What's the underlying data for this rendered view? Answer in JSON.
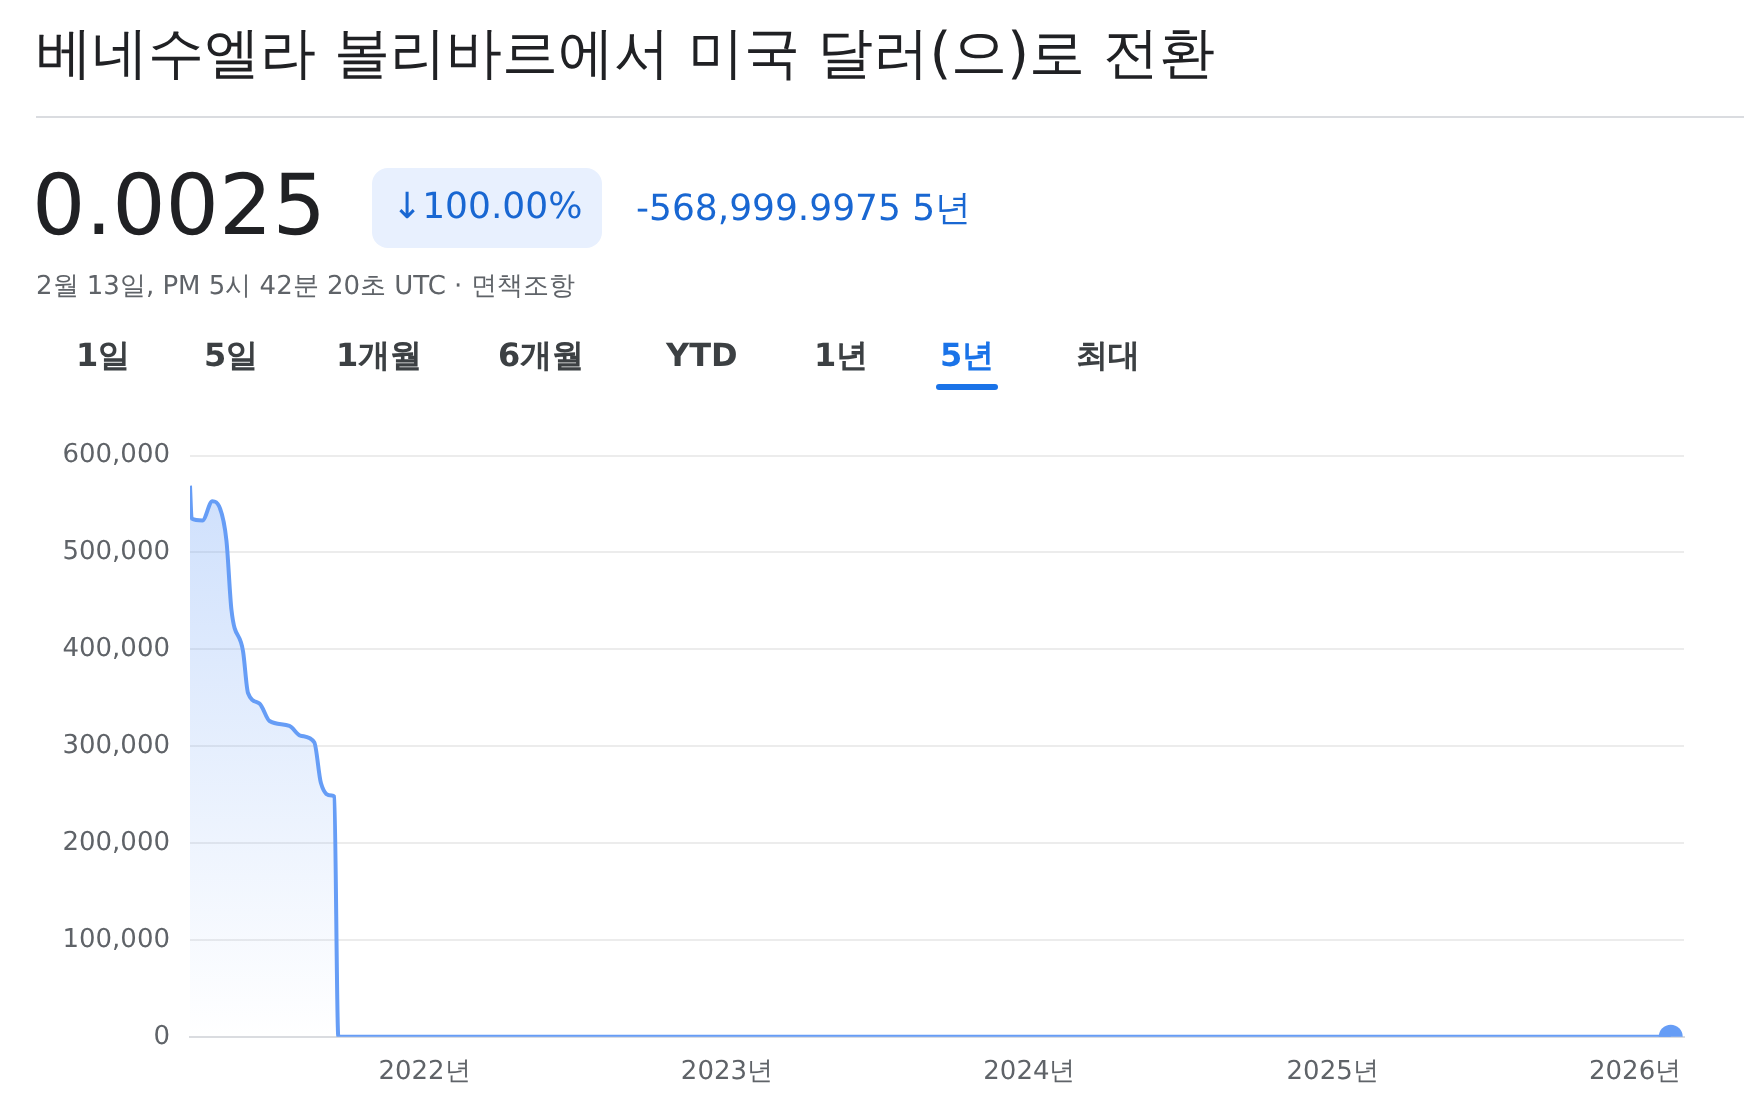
{
  "chart_data": {
    "type": "area",
    "title": "베네수엘라 볼리바르에서 미국 달러(으)로 전환",
    "annotations": [
      "0.0025",
      "↓100.00%",
      "-568,999.9975 5년",
      "2월 13일, PM 5시 42분 20초 UTC · 면책조항",
      "1일",
      "5일",
      "1개월",
      "6개월",
      "YTD",
      "1년",
      "5년",
      "최대"
    ],
    "x": [
      "2021-03-24",
      "2021-03-26",
      "2021-04-08",
      "2021-04-20",
      "2021-04-28",
      "2021-05-07",
      "2021-05-13",
      "2021-05-27",
      "2021-06-02",
      "2021-06-16",
      "2021-06-28",
      "2021-07-22",
      "2021-08-04",
      "2021-08-21",
      "2021-08-29",
      "2021-09-11",
      "2021-09-14",
      "2021-09-19",
      "2026-02-13"
    ],
    "series": [
      {
        "color": "#669df6",
        "values": [
          569000,
          535000,
          533000,
          553000,
          548000,
          512000,
          441000,
          398000,
          355000,
          344000,
          326000,
          321000,
          311000,
          304000,
          262000,
          249000,
          248000,
          0,
          0.0025
        ]
      }
    ],
    "xlim": [
      "2021-03-24",
      "2026-03-01"
    ],
    "xticks": [
      {
        "value": "2022-01-01",
        "label": "2022년"
      },
      {
        "value": "2023-01-01",
        "label": "2023년"
      },
      {
        "value": "2024-01-01",
        "label": "2024년"
      },
      {
        "value": "2025-01-01",
        "label": "2025년"
      },
      {
        "value": "2026-01-01",
        "label": "2026년"
      }
    ],
    "ylim": [
      0,
      600000
    ],
    "yticks": [
      0,
      {
        "value": 100000,
        "label": "100,000"
      },
      {
        "value": 200000,
        "label": "200,000"
      },
      {
        "value": 300000,
        "label": "300,000"
      },
      {
        "value": 400000,
        "label": "400,000"
      },
      {
        "value": 500000,
        "label": "500,000"
      },
      {
        "value": 600000,
        "label": "600,000"
      }
    ],
    "grid": "y",
    "legend": false
  }
}
